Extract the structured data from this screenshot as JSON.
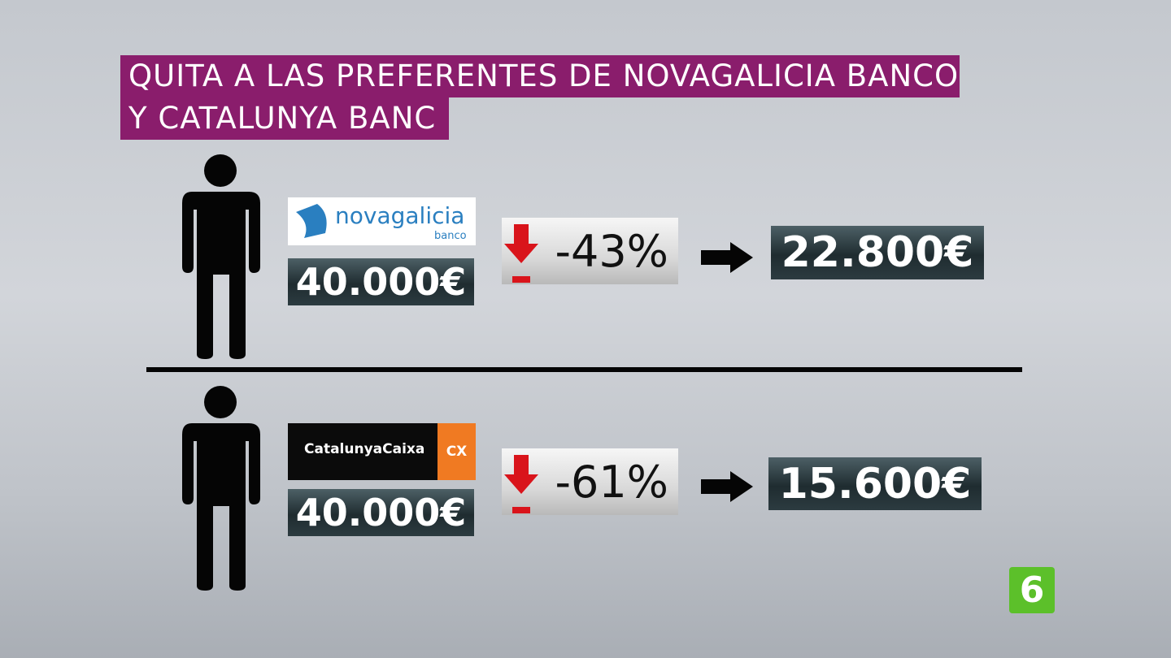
{
  "header": {
    "title_lines": [
      "QUITA A LAS PREFERENTES DE NOVAGALICIA BANCO",
      "Y CATALUNYA BANC"
    ]
  },
  "rows": [
    {
      "bank_logo": {
        "name": "novagalicia",
        "subtitle": "banco"
      },
      "amount": "40.000€",
      "change": "-43%",
      "result": "22.800€"
    },
    {
      "bank_logo": {
        "name": "CatalunyaCaixa",
        "badge": "CX"
      },
      "amount": "40.000€",
      "change": "-61%",
      "result": "15.600€"
    }
  ],
  "channel_logo": "6"
}
